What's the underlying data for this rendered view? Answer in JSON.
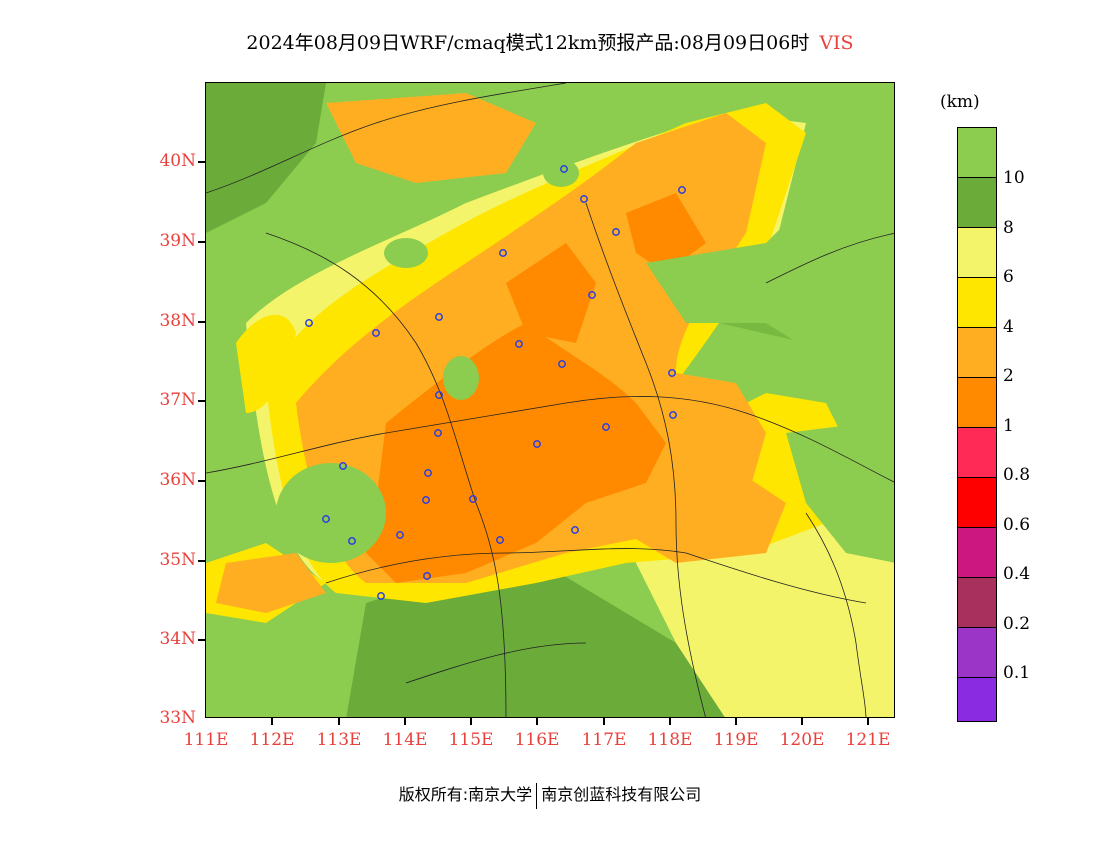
{
  "title": {
    "text": "2024年08月09日WRF/cmaq模式12km预报产品:08月09日06时",
    "variable": "VIS",
    "variable_color": "#e8413c"
  },
  "map": {
    "lat_labels": [
      "40N",
      "39N",
      "38N",
      "37N",
      "36N",
      "35N",
      "34N",
      "33N"
    ],
    "lon_labels": [
      "111E",
      "112E",
      "113E",
      "114E",
      "115E",
      "116E",
      "117E",
      "118E",
      "119E",
      "120E",
      "121E"
    ],
    "lat_range": [
      33,
      41
    ],
    "lon_range": [
      111,
      121.4
    ],
    "axis_label_color": "#e8413c"
  },
  "legend": {
    "unit": "(km)",
    "levels": [
      {
        "label": "10",
        "color": "#8ccc4e"
      },
      {
        "label": "8",
        "color": "#6aab3a"
      },
      {
        "label": "6",
        "color": "#f4f46a"
      },
      {
        "label": "4",
        "color": "#ffe600"
      },
      {
        "label": "2",
        "color": "#ffae22"
      },
      {
        "label": "1",
        "color": "#ff8a00"
      },
      {
        "label": "0.8",
        "color": "#ff2a55"
      },
      {
        "label": "0.6",
        "color": "#ff0000"
      },
      {
        "label": "0.4",
        "color": "#cc1780"
      },
      {
        "label": "0.2",
        "color": "#a8305c"
      },
      {
        "label": "0.1",
        "color": "#9a35c8"
      },
      {
        "label": "",
        "color": "#8a2be2"
      }
    ]
  },
  "footer": {
    "left": "版权所有:南京大学",
    "right": "南京创蓝科技有限公司"
  }
}
